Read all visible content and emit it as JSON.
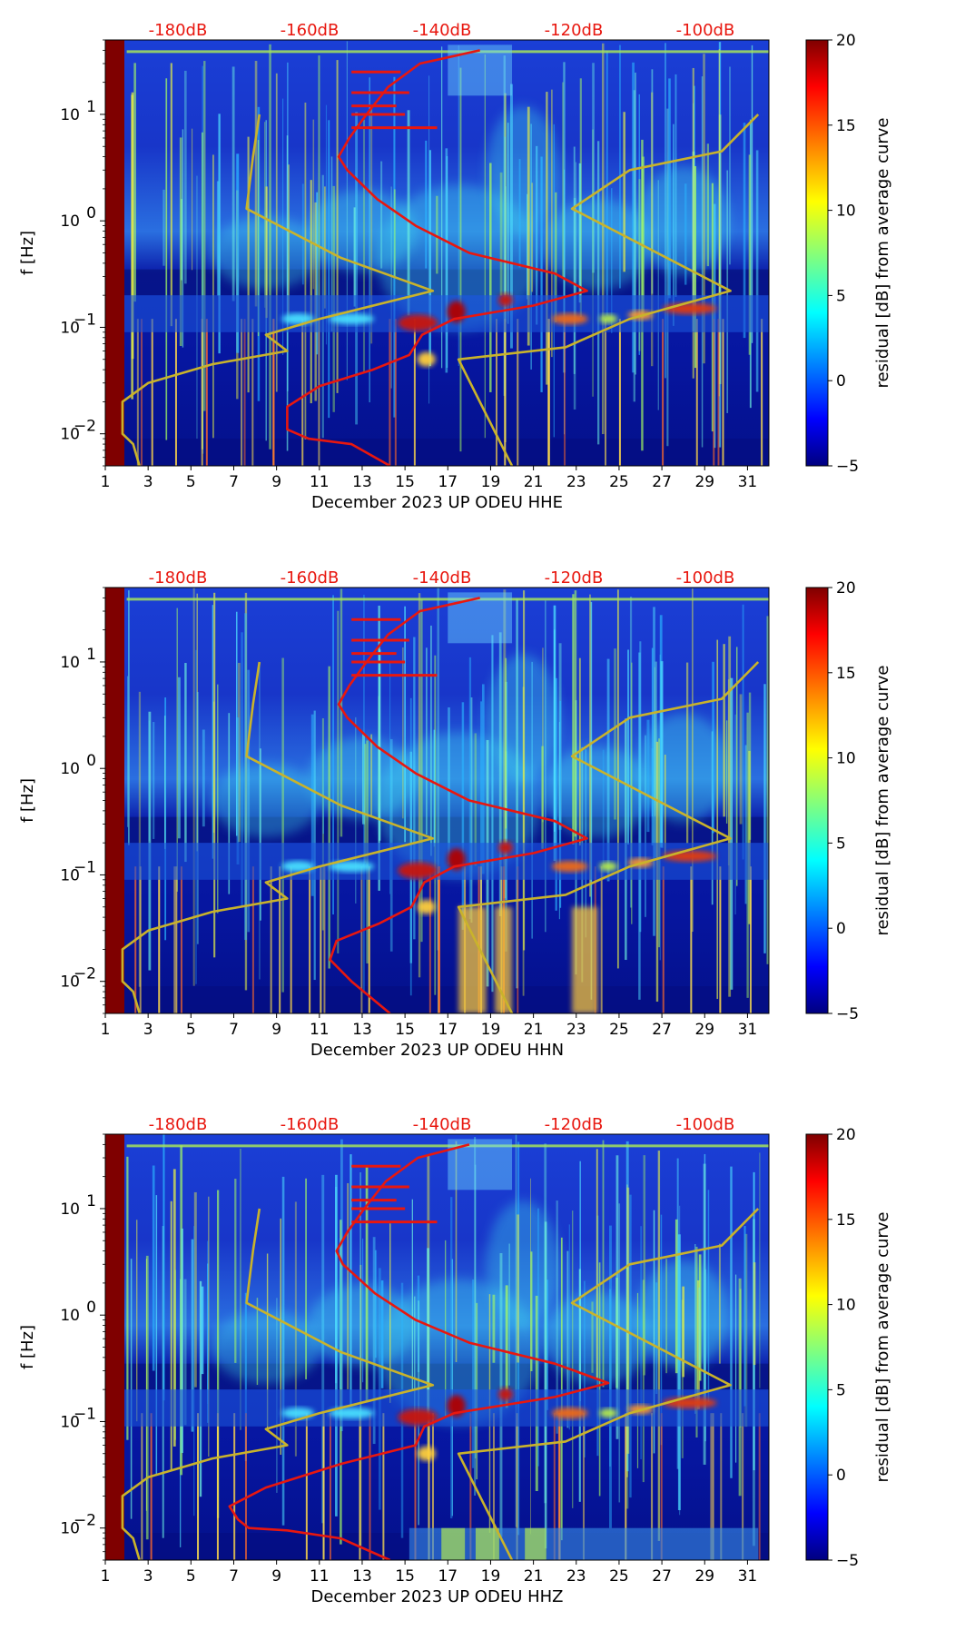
{
  "chart_data": [
    {
      "type": "heatmap",
      "title": "",
      "xlabel": "December 2023 UP ODEU  HHE",
      "ylabel": "f [Hz]",
      "x_ticks": [
        "1",
        "3",
        "5",
        "7",
        "9",
        "11",
        "13",
        "15",
        "17",
        "19",
        "21",
        "23",
        "25",
        "27",
        "29",
        "31"
      ],
      "x_range": [
        1,
        32
      ],
      "y_scale": "log",
      "y_range": [
        0.005,
        50
      ],
      "y_ticks": [
        {
          "base": "10",
          "exp": "−2"
        },
        {
          "base": "10",
          "exp": "−1"
        },
        {
          "base": "10",
          "exp": "0"
        },
        {
          "base": "10",
          "exp": "1"
        }
      ],
      "top_scale_labels": [
        "-180dB",
        "-160dB",
        "-140dB",
        "-120dB",
        "-100dB"
      ],
      "colorbar": {
        "label": "residual [dB] from average curve",
        "range": [
          -5,
          20
        ],
        "ticks": [
          "20",
          "15",
          "10",
          "5",
          "0",
          "−5"
        ]
      },
      "colormap": "jet",
      "series": [
        {
          "name": "mean PSD (red)",
          "color": "#e8170f",
          "values": [
            [
              14.3,
              0.005
            ],
            [
              12.5,
              0.008
            ],
            [
              10.5,
              0.009
            ],
            [
              9.5,
              0.011
            ],
            [
              9.5,
              0.018
            ],
            [
              11.0,
              0.028
            ],
            [
              13.5,
              0.04
            ],
            [
              15.2,
              0.055
            ],
            [
              15.8,
              0.085
            ],
            [
              17.3,
              0.12
            ],
            [
              21.0,
              0.16
            ],
            [
              23.5,
              0.22
            ],
            [
              22.0,
              0.32
            ],
            [
              18.0,
              0.5
            ],
            [
              15.5,
              0.9
            ],
            [
              13.7,
              1.6
            ],
            [
              12.3,
              3.0
            ],
            [
              11.9,
              4.0
            ],
            [
              12.4,
              6.0
            ],
            [
              13.2,
              10.0
            ],
            [
              14.2,
              18.0
            ],
            [
              15.7,
              30.0
            ],
            [
              18.5,
              40.0
            ]
          ]
        },
        {
          "name": "NLNM (yellow)",
          "color": "#c9b32b",
          "values": [
            [
              2.6,
              0.005
            ],
            [
              2.3,
              0.008
            ],
            [
              1.8,
              0.01
            ],
            [
              1.8,
              0.02
            ],
            [
              3.0,
              0.03
            ],
            [
              6.0,
              0.045
            ],
            [
              9.5,
              0.06
            ],
            [
              8.5,
              0.085
            ],
            [
              11.0,
              0.12
            ],
            [
              16.3,
              0.22
            ],
            [
              12.0,
              0.45
            ],
            [
              7.6,
              1.3
            ],
            [
              7.9,
              4.0
            ],
            [
              8.2,
              10.0
            ]
          ]
        },
        {
          "name": "NHNM (yellow)",
          "color": "#c9b32b",
          "values": [
            [
              20.0,
              0.005
            ],
            [
              17.5,
              0.05
            ],
            [
              22.5,
              0.065
            ],
            [
              25.5,
              0.12
            ],
            [
              30.2,
              0.22
            ],
            [
              22.8,
              1.3
            ],
            [
              25.5,
              3.0
            ],
            [
              29.8,
              4.5
            ],
            [
              31.5,
              10.0
            ]
          ]
        }
      ]
    },
    {
      "type": "heatmap",
      "title": "",
      "xlabel": "December 2023 UP ODEU  HHN",
      "ylabel": "f [Hz]",
      "x_ticks": [
        "1",
        "3",
        "5",
        "7",
        "9",
        "11",
        "13",
        "15",
        "17",
        "19",
        "21",
        "23",
        "25",
        "27",
        "29",
        "31"
      ],
      "x_range": [
        1,
        32
      ],
      "y_scale": "log",
      "y_range": [
        0.005,
        50
      ],
      "y_ticks": [
        {
          "base": "10",
          "exp": "−2"
        },
        {
          "base": "10",
          "exp": "−1"
        },
        {
          "base": "10",
          "exp": "0"
        },
        {
          "base": "10",
          "exp": "1"
        }
      ],
      "top_scale_labels": [
        "-180dB",
        "-160dB",
        "-140dB",
        "-120dB",
        "-100dB"
      ],
      "colorbar": {
        "label": "residual [dB] from average curve",
        "range": [
          -5,
          20
        ],
        "ticks": [
          "20",
          "15",
          "10",
          "5",
          "0",
          "−5"
        ]
      },
      "colormap": "jet",
      "series": [
        {
          "name": "mean PSD (red)",
          "color": "#e8170f",
          "values": [
            [
              14.3,
              0.005
            ],
            [
              12.5,
              0.01
            ],
            [
              11.5,
              0.016
            ],
            [
              11.8,
              0.024
            ],
            [
              13.8,
              0.035
            ],
            [
              15.3,
              0.05
            ],
            [
              15.9,
              0.085
            ],
            [
              17.3,
              0.12
            ],
            [
              21.0,
              0.16
            ],
            [
              23.5,
              0.22
            ],
            [
              22.0,
              0.32
            ],
            [
              18.0,
              0.5
            ],
            [
              15.5,
              0.9
            ],
            [
              13.7,
              1.6
            ],
            [
              12.3,
              3.0
            ],
            [
              11.9,
              4.0
            ],
            [
              12.4,
              6.0
            ],
            [
              13.2,
              10.0
            ],
            [
              14.2,
              18.0
            ],
            [
              15.7,
              30.0
            ],
            [
              18.5,
              40.0
            ]
          ]
        },
        {
          "name": "NLNM (yellow)",
          "color": "#c9b32b",
          "values": [
            [
              2.6,
              0.005
            ],
            [
              2.3,
              0.008
            ],
            [
              1.8,
              0.01
            ],
            [
              1.8,
              0.02
            ],
            [
              3.0,
              0.03
            ],
            [
              6.0,
              0.045
            ],
            [
              9.5,
              0.06
            ],
            [
              8.5,
              0.085
            ],
            [
              11.0,
              0.12
            ],
            [
              16.3,
              0.22
            ],
            [
              12.0,
              0.45
            ],
            [
              7.6,
              1.3
            ],
            [
              7.9,
              4.0
            ],
            [
              8.2,
              10.0
            ]
          ]
        },
        {
          "name": "NHNM (yellow)",
          "color": "#c9b32b",
          "values": [
            [
              20.0,
              0.005
            ],
            [
              17.5,
              0.05
            ],
            [
              22.5,
              0.065
            ],
            [
              25.5,
              0.12
            ],
            [
              30.2,
              0.22
            ],
            [
              22.8,
              1.3
            ],
            [
              25.5,
              3.0
            ],
            [
              29.8,
              4.5
            ],
            [
              31.5,
              10.0
            ]
          ]
        }
      ]
    },
    {
      "type": "heatmap",
      "title": "",
      "xlabel": "December 2023 UP ODEU  HHZ",
      "ylabel": "f [Hz]",
      "x_ticks": [
        "1",
        "3",
        "5",
        "7",
        "9",
        "11",
        "13",
        "15",
        "17",
        "19",
        "21",
        "23",
        "25",
        "27",
        "29",
        "31"
      ],
      "x_range": [
        1,
        32
      ],
      "y_scale": "log",
      "y_range": [
        0.005,
        50
      ],
      "y_ticks": [
        {
          "base": "10",
          "exp": "−2"
        },
        {
          "base": "10",
          "exp": "−1"
        },
        {
          "base": "10",
          "exp": "0"
        },
        {
          "base": "10",
          "exp": "1"
        }
      ],
      "top_scale_labels": [
        "-180dB",
        "-160dB",
        "-140dB",
        "-120dB",
        "-100dB"
      ],
      "colorbar": {
        "label": "residual [dB] from average curve",
        "range": [
          -5,
          20
        ],
        "ticks": [
          "20",
          "15",
          "10",
          "5",
          "0",
          "−5"
        ]
      },
      "colormap": "jet",
      "series": [
        {
          "name": "mean PSD (red)",
          "color": "#e8170f",
          "values": [
            [
              14.3,
              0.005
            ],
            [
              12.0,
              0.008
            ],
            [
              9.5,
              0.0095
            ],
            [
              7.7,
              0.01
            ],
            [
              7.2,
              0.012
            ],
            [
              6.8,
              0.016
            ],
            [
              8.5,
              0.024
            ],
            [
              12.0,
              0.04
            ],
            [
              15.5,
              0.06
            ],
            [
              15.9,
              0.09
            ],
            [
              17.3,
              0.12
            ],
            [
              22.0,
              0.17
            ],
            [
              24.5,
              0.23
            ],
            [
              22.0,
              0.35
            ],
            [
              18.0,
              0.55
            ],
            [
              15.5,
              0.9
            ],
            [
              13.6,
              1.6
            ],
            [
              12.1,
              3.0
            ],
            [
              11.8,
              4.0
            ],
            [
              12.3,
              6.0
            ],
            [
              13.1,
              10.0
            ],
            [
              14.1,
              18.0
            ],
            [
              15.6,
              30.0
            ],
            [
              18.0,
              40.0
            ]
          ]
        },
        {
          "name": "NLNM (yellow)",
          "color": "#c9b32b",
          "values": [
            [
              2.6,
              0.005
            ],
            [
              2.3,
              0.008
            ],
            [
              1.8,
              0.01
            ],
            [
              1.8,
              0.02
            ],
            [
              3.0,
              0.03
            ],
            [
              6.0,
              0.045
            ],
            [
              9.5,
              0.06
            ],
            [
              8.5,
              0.085
            ],
            [
              11.0,
              0.12
            ],
            [
              16.3,
              0.22
            ],
            [
              12.0,
              0.45
            ],
            [
              7.6,
              1.3
            ],
            [
              7.9,
              4.0
            ],
            [
              8.2,
              10.0
            ]
          ]
        },
        {
          "name": "NHNM (yellow)",
          "color": "#c9b32b",
          "values": [
            [
              20.0,
              0.005
            ],
            [
              17.5,
              0.05
            ],
            [
              22.5,
              0.065
            ],
            [
              25.5,
              0.12
            ],
            [
              30.2,
              0.22
            ],
            [
              22.8,
              1.3
            ],
            [
              25.5,
              3.0
            ],
            [
              29.8,
              4.5
            ],
            [
              31.5,
              10.0
            ]
          ]
        }
      ]
    }
  ]
}
